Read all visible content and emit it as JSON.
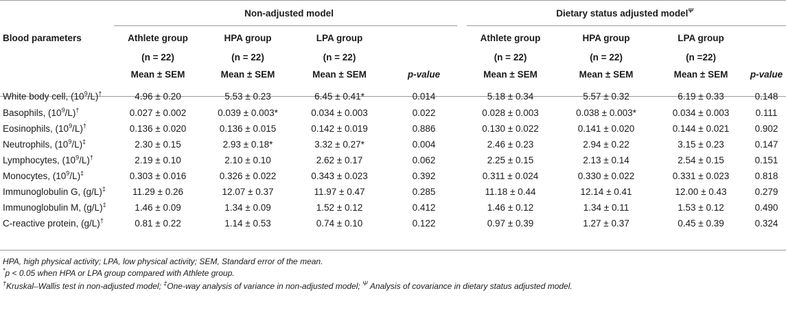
{
  "table": {
    "group_headers": {
      "non_adjusted": "Non-adjusted model",
      "adjusted": "Dietary status adjusted model",
      "adjusted_sup": "Ψ"
    },
    "row_header": "Blood parameters",
    "columns": [
      {
        "name": "Athlete group",
        "n": "(n = 22)",
        "stat": "Mean ± SEM"
      },
      {
        "name": "HPA group",
        "n": "(n = 22)",
        "stat": "Mean ± SEM"
      },
      {
        "name": "LPA group",
        "n": "(n = 22)",
        "stat": "Mean ± SEM"
      },
      {
        "name": "p-value"
      },
      {
        "name": "Athlete group",
        "n": "(n = 22)",
        "stat": "Mean ± SEM"
      },
      {
        "name": "HPA group",
        "n": "(n = 22)",
        "stat": "Mean ± SEM"
      },
      {
        "name": "LPA group",
        "n": "(n =22)",
        "stat": "Mean ± SEM"
      },
      {
        "name": "p-value"
      }
    ],
    "rows": [
      {
        "label": "White body cell, (10",
        "exp": "9",
        "unit": "/L)",
        "mark": "†",
        "cells": [
          "4.96 ± 0.20",
          "5.53 ± 0.23",
          "6.45 ± 0.41*",
          "0.014",
          "5.18 ± 0.34",
          "5.57 ± 0.32",
          "6.19 ± 0.33",
          "0.148"
        ]
      },
      {
        "label": "Basophils, (10",
        "exp": "9",
        "unit": "/L)",
        "mark": "†",
        "cells": [
          "0.027 ± 0.002",
          "0.039 ± 0.003*",
          "0.034 ± 0.003",
          "0.022",
          "0.028 ± 0.003",
          "0.038 ± 0.003*",
          "0.034 ± 0.003",
          "0.111"
        ]
      },
      {
        "label": "Eosinophils, (10",
        "exp": "9",
        "unit": "/L)",
        "mark": "†",
        "cells": [
          "0.136 ± 0.020",
          "0.136 ± 0.015",
          "0.142 ± 0.019",
          "0.886",
          "0.130 ± 0.022",
          "0.141 ± 0.020",
          "0.144 ± 0.021",
          "0.902"
        ]
      },
      {
        "label": "Neutrophils, (10",
        "exp": "9",
        "unit": "/L)",
        "mark": "‡",
        "cells": [
          "2.30 ± 0.15",
          "2.93 ± 0.18*",
          "3.32 ± 0.27*",
          "0.004",
          "2.46 ± 0.23",
          "2.94 ± 0.22",
          "3.15 ± 0.23",
          "0.147"
        ]
      },
      {
        "label": "Lymphocytes, (10",
        "exp": "9",
        "unit": "/L)",
        "mark": "†",
        "cells": [
          "2.19 ± 0.10",
          "2.10 ± 0.10",
          "2.62 ± 0.17",
          "0.062",
          "2.25 ± 0.15",
          "2.13 ± 0.14",
          "2.54 ± 0.15",
          "0.151"
        ]
      },
      {
        "label": "Monocytes, (10",
        "exp": "9",
        "unit": "/L)",
        "mark": "‡",
        "cells": [
          "0.303 ± 0.016",
          "0.326 ± 0.022",
          "0.343 ± 0.023",
          "0.392",
          "0.311 ± 0.024",
          "0.330 ± 0.022",
          "0.331 ± 0.023",
          "0.818"
        ]
      },
      {
        "label": "Immunoglobulin G, (g/L)",
        "exp": "",
        "unit": "",
        "mark": "‡",
        "cells": [
          "11.29 ± 0.26",
          "12.07 ± 0.37",
          "11.97 ± 0.47",
          "0.285",
          "11.18 ± 0.44",
          "12.14 ± 0.41",
          "12.00 ± 0.43",
          "0.279"
        ]
      },
      {
        "label": "Immunoglobulin M, (g/L)",
        "exp": "",
        "unit": "",
        "mark": "‡",
        "cells": [
          "1.46 ± 0.09",
          "1.34 ± 0.09",
          "1.52 ± 0.12",
          "0.412",
          "1.46 ± 0.12",
          "1.34 ± 0.11",
          "1.53 ± 0.12",
          "0.490"
        ]
      },
      {
        "label": "C-reactive protein, (g/L)",
        "exp": "",
        "unit": "",
        "mark": "†",
        "cells": [
          "0.81 ± 0.22",
          "1.14 ± 0.53",
          "0.74 ± 0.10",
          "0.122",
          "0.97 ± 0.39",
          "1.27 ± 0.37",
          "0.45 ± 0.39",
          "0.324"
        ]
      }
    ]
  },
  "notes": {
    "abbrev": "HPA, high physical activity; LPA, low physical activity; SEM, Standard error of the mean.",
    "star_mark": "*",
    "star_text": "p < 0.05 when HPA or LPA group compared with Athlete group.",
    "dagger_mark": "†",
    "dagger_text": "Kruskal–Wallis test in non-adjusted model; ",
    "ddagger_mark": "‡",
    "ddagger_text": "One-way analysis of variance in non-adjusted model; ",
    "psi_mark": "Ψ",
    "psi_text": " Analysis of covariance in dietary status adjusted model."
  }
}
